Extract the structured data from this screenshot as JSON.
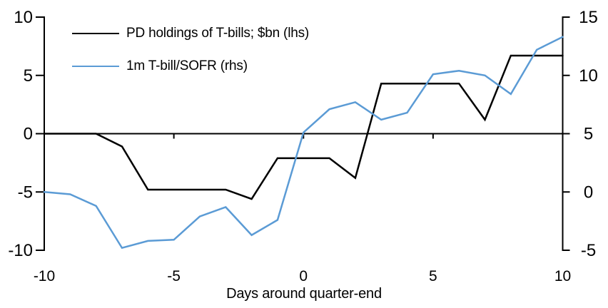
{
  "chart_data": {
    "type": "line",
    "title": "",
    "xlabel": "Days around quarter-end",
    "grid": false,
    "legend_position": "top-left",
    "x": [
      -10,
      -9,
      -8,
      -7,
      -6,
      -5,
      -4,
      -3,
      -2,
      -1,
      0,
      1,
      2,
      3,
      4,
      5,
      6,
      7,
      8,
      9,
      10
    ],
    "series": [
      {
        "name": "PD holdings of T-bills; $bn (lhs)",
        "axis": "left",
        "color": "#000000",
        "values": [
          0,
          0,
          0,
          -1.1,
          -4.8,
          -4.8,
          -4.8,
          -4.8,
          -5.6,
          -2.1,
          -2.1,
          -2.1,
          -3.8,
          4.3,
          4.3,
          4.3,
          4.3,
          1.2,
          6.7,
          6.7,
          6.7
        ]
      },
      {
        "name": "1m T-bill/SOFR (rhs)",
        "axis": "right",
        "color": "#5B9BD5",
        "values": [
          0.0,
          -0.2,
          -1.2,
          -4.8,
          -4.2,
          -4.1,
          -2.1,
          -1.3,
          -3.7,
          -2.4,
          5.1,
          7.1,
          7.7,
          6.2,
          6.8,
          10.1,
          10.4,
          10.0,
          8.4,
          12.2,
          13.3
        ]
      }
    ],
    "axes": {
      "left": {
        "range": [
          -10,
          10
        ],
        "ticks": [
          10,
          5,
          0,
          -5,
          -10
        ]
      },
      "right": {
        "range": [
          -5,
          15
        ],
        "ticks": [
          15,
          10,
          5,
          0,
          -5
        ]
      },
      "x": {
        "range": [
          -10,
          10
        ],
        "ticks": [
          -10,
          -5,
          0,
          5,
          10
        ]
      }
    }
  }
}
